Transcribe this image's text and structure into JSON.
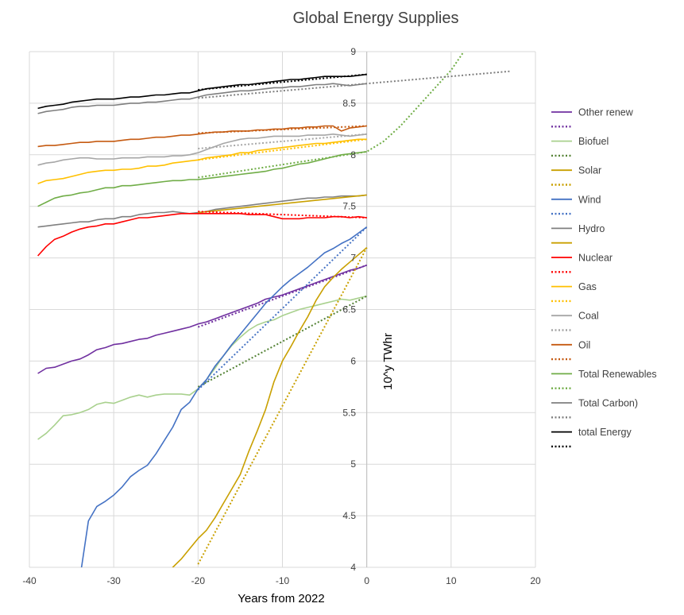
{
  "chart_data": {
    "type": "line",
    "title": "Global Energy Supplies",
    "xlabel": "Years from 2022",
    "ylabel": "10^y TWhr",
    "xlim": [
      -40,
      20
    ],
    "ylim": [
      4,
      9
    ],
    "x_ticks": [
      "-40",
      "-30",
      "-20",
      "-10",
      "0",
      "10",
      "20"
    ],
    "y_ticks": [
      "4",
      "4.5",
      "5",
      "5.5",
      "6",
      "6.5",
      "7",
      "7.5",
      "8",
      "8.5",
      "9"
    ],
    "grid": "horizontal and vertical",
    "legend_position": "right",
    "series": [
      {
        "name": "Other renew",
        "color": "#7030a0",
        "dash": false,
        "x": [
          -39,
          -38,
          -37,
          -36,
          -35,
          -34,
          -33,
          -32,
          -31,
          -30,
          -29,
          -28,
          -27,
          -26,
          -25,
          -24,
          -23,
          -22,
          -21,
          -20,
          -19,
          -18,
          -17,
          -16,
          -15,
          -14,
          -13,
          -12,
          -11,
          -10,
          -9,
          -8,
          -7,
          -6,
          -5,
          -4,
          -3,
          -2,
          -1,
          0
        ],
        "y": [
          5.88,
          5.93,
          5.94,
          5.97,
          6.0,
          6.02,
          6.06,
          6.11,
          6.13,
          6.16,
          6.17,
          6.19,
          6.21,
          6.22,
          6.25,
          6.27,
          6.29,
          6.31,
          6.33,
          6.36,
          6.38,
          6.41,
          6.44,
          6.47,
          6.5,
          6.53,
          6.56,
          6.6,
          6.62,
          6.64,
          6.67,
          6.7,
          6.73,
          6.76,
          6.79,
          6.82,
          6.85,
          6.88,
          6.9,
          6.93
        ]
      },
      {
        "name": "",
        "color": "#7030a0",
        "dash": true,
        "x": [
          -20,
          0
        ],
        "y": [
          6.33,
          6.93
        ]
      },
      {
        "name": "Biofuel",
        "color": "#a9d18e",
        "dash": false,
        "x": [
          -39,
          -38,
          -37,
          -36,
          -35,
          -34,
          -33,
          -32,
          -31,
          -30,
          -29,
          -28,
          -27,
          -26,
          -25,
          -24,
          -23,
          -22,
          -21,
          -20,
          -19,
          -18,
          -17,
          -16,
          -15,
          -14,
          -13,
          -12,
          -11,
          -10,
          -9,
          -8,
          -7,
          -6,
          -5,
          -4,
          -3,
          -2,
          -1,
          0
        ],
        "y": [
          5.24,
          5.3,
          5.38,
          5.47,
          5.48,
          5.5,
          5.53,
          5.58,
          5.6,
          5.59,
          5.62,
          5.65,
          5.67,
          5.65,
          5.67,
          5.68,
          5.68,
          5.68,
          5.67,
          5.73,
          5.82,
          5.93,
          6.05,
          6.15,
          6.23,
          6.3,
          6.35,
          6.38,
          6.4,
          6.44,
          6.47,
          6.5,
          6.52,
          6.54,
          6.56,
          6.58,
          6.6,
          6.59,
          6.61,
          6.63
        ]
      },
      {
        "name": "",
        "color": "#548235",
        "dash": true,
        "x": [
          -20,
          0
        ],
        "y": [
          5.75,
          6.63
        ]
      },
      {
        "name": "Solar",
        "color": "#c9a000",
        "dash": false,
        "x": [
          -25,
          -24,
          -23,
          -22,
          -21,
          -20,
          -19,
          -18,
          -17,
          -16,
          -15,
          -14,
          -13,
          -12,
          -11,
          -10,
          -9,
          -8,
          -7,
          -6,
          -5,
          -4,
          -3,
          -2,
          -1,
          0
        ],
        "y": [
          3.8,
          3.9,
          4.0,
          4.08,
          4.18,
          4.28,
          4.36,
          4.48,
          4.62,
          4.76,
          4.9,
          5.12,
          5.32,
          5.53,
          5.8,
          6.0,
          6.14,
          6.29,
          6.43,
          6.59,
          6.72,
          6.81,
          6.89,
          6.96,
          7.03,
          7.1
        ]
      },
      {
        "name": "",
        "color": "#c9a000",
        "dash": true,
        "x": [
          -20,
          0
        ],
        "y": [
          4.03,
          7.1
        ]
      },
      {
        "name": "Wind",
        "color": "#4472c4",
        "dash": false,
        "x": [
          -34,
          -33,
          -32,
          -31,
          -30,
          -29,
          -28,
          -27,
          -26,
          -25,
          -24,
          -23,
          -22,
          -21,
          -20,
          -19,
          -18,
          -17,
          -16,
          -15,
          -14,
          -13,
          -12,
          -11,
          -10,
          -9,
          -8,
          -7,
          -6,
          -5,
          -4,
          -3,
          -2,
          -1,
          0
        ],
        "y": [
          3.9,
          4.45,
          4.59,
          4.64,
          4.7,
          4.78,
          4.88,
          4.94,
          4.99,
          5.1,
          5.23,
          5.36,
          5.53,
          5.6,
          5.73,
          5.82,
          5.95,
          6.05,
          6.16,
          6.26,
          6.36,
          6.46,
          6.56,
          6.64,
          6.72,
          6.79,
          6.85,
          6.91,
          6.98,
          7.05,
          7.09,
          7.14,
          7.18,
          7.24,
          7.3
        ]
      },
      {
        "name": "",
        "color": "#4472c4",
        "dash": true,
        "x": [
          -20,
          0
        ],
        "y": [
          5.72,
          7.3
        ]
      },
      {
        "name": "Hydro",
        "color": "#808080",
        "dash": false,
        "x": [
          -39,
          -38,
          -37,
          -36,
          -35,
          -34,
          -33,
          -32,
          -31,
          -30,
          -29,
          -28,
          -27,
          -26,
          -25,
          -24,
          -23,
          -22,
          -21,
          -20,
          -19,
          -18,
          -17,
          -16,
          -15,
          -14,
          -13,
          -12,
          -11,
          -10,
          -9,
          -8,
          -7,
          -6,
          -5,
          -4,
          -3,
          -2,
          -1,
          0
        ],
        "y": [
          7.3,
          7.31,
          7.32,
          7.33,
          7.34,
          7.35,
          7.35,
          7.37,
          7.38,
          7.38,
          7.4,
          7.4,
          7.42,
          7.43,
          7.44,
          7.44,
          7.45,
          7.44,
          7.43,
          7.44,
          7.45,
          7.47,
          7.48,
          7.49,
          7.5,
          7.51,
          7.52,
          7.53,
          7.54,
          7.55,
          7.56,
          7.57,
          7.58,
          7.58,
          7.59,
          7.59,
          7.6,
          7.6,
          7.6,
          7.61
        ]
      },
      {
        "name": "",
        "color": "#c9a000",
        "dash": false,
        "x": [
          -20,
          0
        ],
        "y": [
          7.44,
          7.61
        ]
      },
      {
        "name": "Nuclear",
        "color": "#ff0000",
        "dash": false,
        "x": [
          -39,
          -38,
          -37,
          -36,
          -35,
          -34,
          -33,
          -32,
          -31,
          -30,
          -29,
          -28,
          -27,
          -26,
          -25,
          -24,
          -23,
          -22,
          -21,
          -20,
          -19,
          -18,
          -17,
          -16,
          -15,
          -14,
          -13,
          -12,
          -11,
          -10,
          -9,
          -8,
          -7,
          -6,
          -5,
          -4,
          -3,
          -2,
          -1,
          0
        ],
        "y": [
          7.02,
          7.11,
          7.18,
          7.21,
          7.25,
          7.28,
          7.3,
          7.31,
          7.33,
          7.33,
          7.35,
          7.37,
          7.39,
          7.39,
          7.4,
          7.41,
          7.42,
          7.43,
          7.43,
          7.43,
          7.43,
          7.43,
          7.43,
          7.43,
          7.43,
          7.42,
          7.42,
          7.42,
          7.4,
          7.38,
          7.38,
          7.38,
          7.39,
          7.39,
          7.39,
          7.4,
          7.4,
          7.39,
          7.4,
          7.39
        ]
      },
      {
        "name": "",
        "color": "#ff0000",
        "dash": true,
        "x": [
          -20,
          0
        ],
        "y": [
          7.45,
          7.39
        ]
      },
      {
        "name": "Gas",
        "color": "#ffc000",
        "dash": false,
        "x": [
          -39,
          -38,
          -37,
          -36,
          -35,
          -34,
          -33,
          -32,
          -31,
          -30,
          -29,
          -28,
          -27,
          -26,
          -25,
          -24,
          -23,
          -22,
          -21,
          -20,
          -19,
          -18,
          -17,
          -16,
          -15,
          -14,
          -13,
          -12,
          -11,
          -10,
          -9,
          -8,
          -7,
          -6,
          -5,
          -4,
          -3,
          -2,
          -1,
          0
        ],
        "y": [
          7.72,
          7.75,
          7.76,
          7.77,
          7.79,
          7.81,
          7.83,
          7.84,
          7.85,
          7.85,
          7.86,
          7.86,
          7.87,
          7.89,
          7.89,
          7.9,
          7.92,
          7.93,
          7.94,
          7.95,
          7.97,
          7.98,
          7.99,
          8.0,
          8.02,
          8.02,
          8.04,
          8.05,
          8.06,
          8.07,
          8.08,
          8.09,
          8.1,
          8.11,
          8.11,
          8.12,
          8.13,
          8.14,
          8.15,
          8.15
        ]
      },
      {
        "name": "",
        "color": "#ffc000",
        "dash": true,
        "x": [
          -20,
          0
        ],
        "y": [
          7.95,
          8.15
        ]
      },
      {
        "name": "Coal",
        "color": "#a6a6a6",
        "dash": false,
        "x": [
          -39,
          -38,
          -37,
          -36,
          -35,
          -34,
          -33,
          -32,
          -31,
          -30,
          -29,
          -28,
          -27,
          -26,
          -25,
          -24,
          -23,
          -22,
          -21,
          -20,
          -19,
          -18,
          -17,
          -16,
          -15,
          -14,
          -13,
          -12,
          -11,
          -10,
          -9,
          -8,
          -7,
          -6,
          -5,
          -4,
          -3,
          -2,
          -1,
          0
        ],
        "y": [
          7.9,
          7.92,
          7.93,
          7.95,
          7.96,
          7.97,
          7.97,
          7.96,
          7.96,
          7.96,
          7.97,
          7.97,
          7.97,
          7.98,
          7.98,
          7.98,
          7.99,
          7.99,
          8.0,
          8.02,
          8.05,
          8.08,
          8.11,
          8.13,
          8.15,
          8.16,
          8.16,
          8.17,
          8.18,
          8.18,
          8.18,
          8.18,
          8.19,
          8.19,
          8.19,
          8.2,
          8.19,
          8.18,
          8.19,
          8.2
        ]
      },
      {
        "name": "",
        "color": "#a6a6a6",
        "dash": true,
        "x": [
          -20,
          0
        ],
        "y": [
          8.06,
          8.2
        ]
      },
      {
        "name": "Oil",
        "color": "#c55a11",
        "dash": false,
        "x": [
          -39,
          -38,
          -37,
          -36,
          -35,
          -34,
          -33,
          -32,
          -31,
          -30,
          -29,
          -28,
          -27,
          -26,
          -25,
          -24,
          -23,
          -22,
          -21,
          -20,
          -19,
          -18,
          -17,
          -16,
          -15,
          -14,
          -13,
          -12,
          -11,
          -10,
          -9,
          -8,
          -7,
          -6,
          -5,
          -4,
          -3,
          -2,
          -1,
          0
        ],
        "y": [
          8.08,
          8.09,
          8.09,
          8.1,
          8.11,
          8.12,
          8.12,
          8.13,
          8.13,
          8.13,
          8.14,
          8.15,
          8.15,
          8.16,
          8.17,
          8.17,
          8.18,
          8.19,
          8.19,
          8.2,
          8.21,
          8.22,
          8.22,
          8.23,
          8.23,
          8.23,
          8.24,
          8.24,
          8.25,
          8.25,
          8.26,
          8.26,
          8.27,
          8.27,
          8.28,
          8.28,
          8.23,
          8.26,
          8.27,
          8.28
        ]
      },
      {
        "name": "",
        "color": "#c55a11",
        "dash": true,
        "x": [
          -20,
          0
        ],
        "y": [
          8.21,
          8.28
        ]
      },
      {
        "name": "Total Renewables",
        "color": "#70ad47",
        "dash": false,
        "x": [
          -39,
          -38,
          -37,
          -36,
          -35,
          -34,
          -33,
          -32,
          -31,
          -30,
          -29,
          -28,
          -27,
          -26,
          -25,
          -24,
          -23,
          -22,
          -21,
          -20,
          -19,
          -18,
          -17,
          -16,
          -15,
          -14,
          -13,
          -12,
          -11,
          -10,
          -9,
          -8,
          -7,
          -6,
          -5,
          -4,
          -3,
          -2,
          -1,
          0
        ],
        "y": [
          7.5,
          7.54,
          7.58,
          7.6,
          7.61,
          7.63,
          7.64,
          7.66,
          7.68,
          7.68,
          7.7,
          7.7,
          7.71,
          7.72,
          7.73,
          7.74,
          7.75,
          7.75,
          7.76,
          7.76,
          7.77,
          7.78,
          7.79,
          7.8,
          7.81,
          7.82,
          7.83,
          7.84,
          7.86,
          7.87,
          7.89,
          7.91,
          7.92,
          7.94,
          7.96,
          7.98,
          8.0,
          8.01,
          8.02,
          8.03
        ]
      },
      {
        "name": "",
        "color": "#70ad47",
        "dash": true,
        "x": [
          -20,
          -16,
          -12,
          -8,
          -4,
          0,
          2,
          4,
          6,
          8,
          10,
          11.5
        ],
        "y": [
          7.78,
          7.83,
          7.88,
          7.93,
          7.98,
          8.03,
          8.13,
          8.28,
          8.46,
          8.64,
          8.82,
          9.0
        ]
      },
      {
        "name": "Total Carbon)",
        "color": "#7f7f7f",
        "dash": false,
        "x": [
          -39,
          -38,
          -37,
          -36,
          -35,
          -34,
          -33,
          -32,
          -31,
          -30,
          -29,
          -28,
          -27,
          -26,
          -25,
          -24,
          -23,
          -22,
          -21,
          -20,
          -19,
          -18,
          -17,
          -16,
          -15,
          -14,
          -13,
          -12,
          -11,
          -10,
          -9,
          -8,
          -7,
          -6,
          -5,
          -4,
          -3,
          -2,
          -1,
          0
        ],
        "y": [
          8.4,
          8.42,
          8.43,
          8.44,
          8.46,
          8.47,
          8.47,
          8.48,
          8.48,
          8.48,
          8.49,
          8.5,
          8.5,
          8.51,
          8.51,
          8.52,
          8.53,
          8.54,
          8.54,
          8.56,
          8.58,
          8.59,
          8.6,
          8.61,
          8.62,
          8.62,
          8.63,
          8.64,
          8.65,
          8.65,
          8.66,
          8.66,
          8.67,
          8.68,
          8.68,
          8.69,
          8.68,
          8.67,
          8.68,
          8.69
        ]
      },
      {
        "name": "",
        "color": "#7f7f7f",
        "dash": true,
        "x": [
          -20,
          0,
          17
        ],
        "y": [
          8.55,
          8.69,
          8.81
        ]
      },
      {
        "name": "total Energy",
        "color": "#000000",
        "dash": false,
        "x": [
          -39,
          -38,
          -37,
          -36,
          -35,
          -34,
          -33,
          -32,
          -31,
          -30,
          -29,
          -28,
          -27,
          -26,
          -25,
          -24,
          -23,
          -22,
          -21,
          -20,
          -19,
          -18,
          -17,
          -16,
          -15,
          -14,
          -13,
          -12,
          -11,
          -10,
          -9,
          -8,
          -7,
          -6,
          -5,
          -4,
          -3,
          -2,
          -1,
          0
        ],
        "y": [
          8.45,
          8.47,
          8.48,
          8.49,
          8.51,
          8.52,
          8.53,
          8.54,
          8.54,
          8.54,
          8.55,
          8.56,
          8.56,
          8.57,
          8.58,
          8.58,
          8.59,
          8.6,
          8.6,
          8.62,
          8.64,
          8.65,
          8.66,
          8.67,
          8.68,
          8.68,
          8.69,
          8.7,
          8.71,
          8.72,
          8.73,
          8.73,
          8.74,
          8.75,
          8.76,
          8.76,
          8.76,
          8.76,
          8.77,
          8.78
        ]
      },
      {
        "name": "",
        "color": "#000000",
        "dash": true,
        "x": [
          -20,
          0
        ],
        "y": [
          8.63,
          8.78
        ]
      }
    ]
  }
}
